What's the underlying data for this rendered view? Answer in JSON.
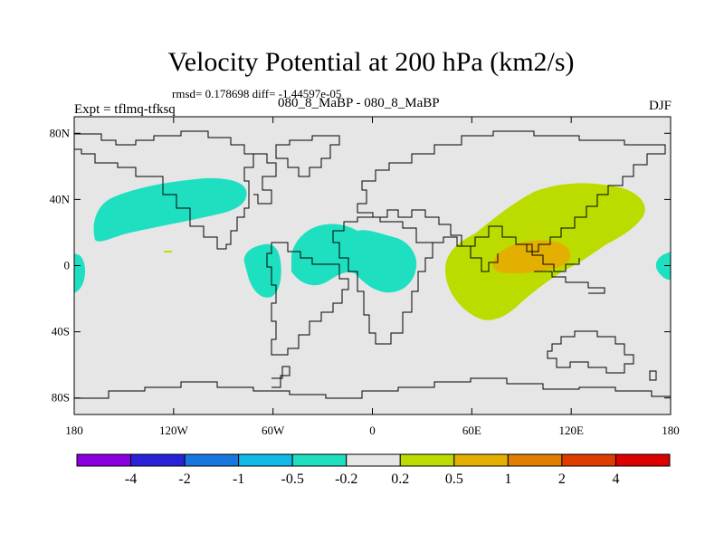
{
  "chart_data": {
    "type": "heatmap",
    "title": "Velocity Potential at 200 hPa (km2/s)",
    "stats_text": "rmsd= 0.178698 diff= -1.44597e-05",
    "left_label": "Expt = tflmq-tfksq",
    "center_label": "080_8_MaBP - 080_8_MaBP",
    "right_label": "DJF",
    "x_axis": {
      "range": [
        -180,
        180
      ],
      "ticks": [
        -180,
        -120,
        -60,
        0,
        60,
        120,
        180
      ],
      "tick_labels": [
        "180",
        "120W",
        "60W",
        "0",
        "60E",
        "120E",
        "180"
      ]
    },
    "y_axis": {
      "range": [
        -90,
        90
      ],
      "ticks": [
        80,
        40,
        0,
        -40,
        -80
      ],
      "tick_labels": [
        "80N",
        "40N",
        "0",
        "40S",
        "80S"
      ]
    },
    "colorbar": {
      "colors": [
        "#8a00e0",
        "#2a22d8",
        "#1677de",
        "#12b9e6",
        "#1ee0c0",
        "#e6e6e6",
        "#bcdc00",
        "#e3af00",
        "#e17d00",
        "#df3c00",
        "#dc0000"
      ],
      "labels": [
        "-4",
        "-2",
        "-1",
        "-0.5",
        "-0.2",
        "0.2",
        "0.5",
        "1",
        "2",
        "4"
      ]
    },
    "regions": [
      {
        "name": "north-pacific-negative",
        "level": "-0.5 to -0.2",
        "color": "#1ee0c0",
        "lon_range": [
          -155,
          -72
        ],
        "lat_range": [
          15,
          52
        ]
      },
      {
        "name": "central-atlantic-negative",
        "level": "-0.5 to -0.2",
        "color": "#1ee0c0",
        "lon_range": [
          -50,
          15
        ],
        "lat_range": [
          -22,
          28
        ]
      },
      {
        "name": "south-america-negative",
        "level": "-0.5 to -0.2",
        "color": "#1ee0c0",
        "lon_range": [
          -73,
          -60
        ],
        "lat_range": [
          -20,
          12
        ]
      },
      {
        "name": "dateline-negative-west",
        "level": "-0.5 to -0.2",
        "color": "#1ee0c0",
        "lon_range": [
          -180,
          -175
        ],
        "lat_range": [
          -15,
          5
        ]
      },
      {
        "name": "dateline-negative-east",
        "level": "-0.5 to -0.2",
        "color": "#1ee0c0",
        "lon_range": [
          172,
          180
        ],
        "lat_range": [
          -8,
          6
        ]
      },
      {
        "name": "asia-positive",
        "level": "0.2 to 0.5",
        "color": "#bcdc00",
        "lon_range": [
          46,
          162
        ],
        "lat_range": [
          -32,
          50
        ]
      },
      {
        "name": "asia-positive-core",
        "level": "0.5 to 1",
        "color": "#e3af00",
        "lon_range": [
          73,
          115
        ],
        "lat_range": [
          -5,
          16
        ]
      }
    ]
  }
}
